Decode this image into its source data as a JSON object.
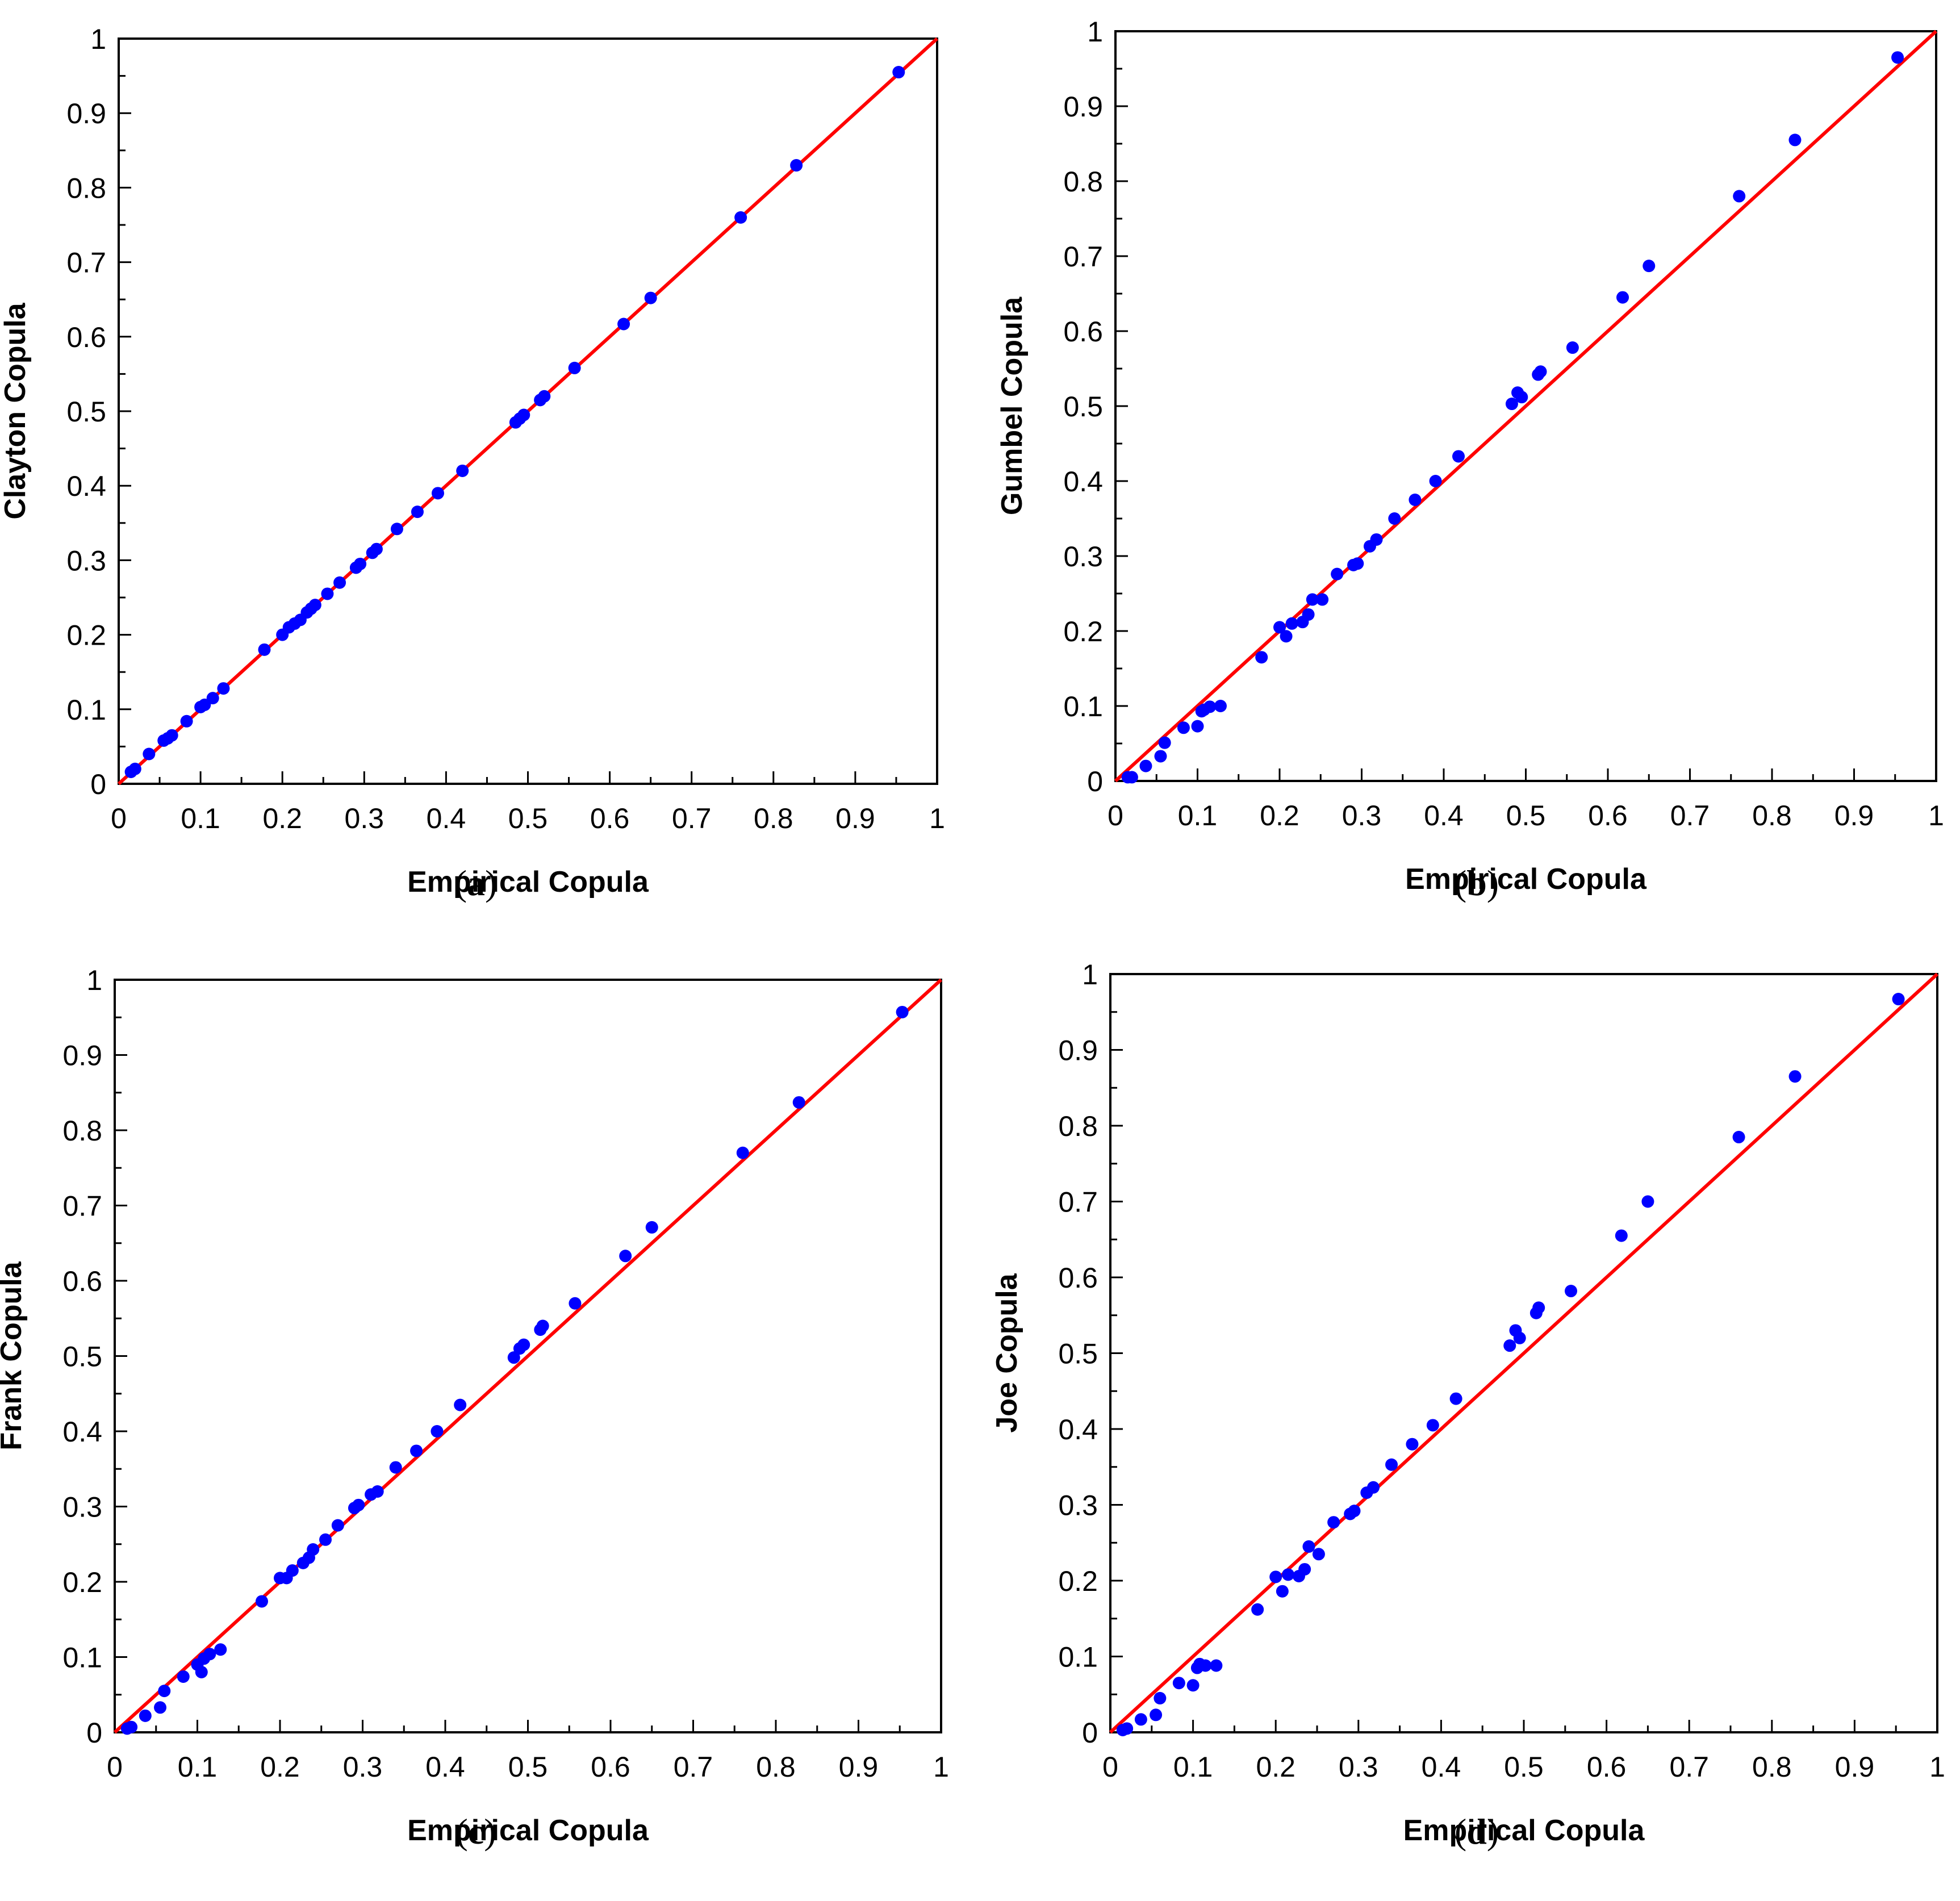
{
  "style": {
    "point_color": "#0000ff",
    "line_color": "#ff0000",
    "axis_color": "#000000"
  },
  "panel_labels": [
    {
      "open": "(",
      "letter": "a",
      "close": ")"
    },
    {
      "open": "(",
      "letter": "b",
      "close": ")"
    },
    {
      "open": "(",
      "letter": "c",
      "close": ")"
    },
    {
      "open": "(",
      "letter": "d",
      "close": ")"
    }
  ],
  "chart_data": [
    {
      "type": "scatter",
      "xlabel": "Empirical Copula",
      "ylabel": "Clayton Copula",
      "xlim": [
        0,
        1
      ],
      "ylim": [
        0,
        1
      ],
      "ticks": [
        "0",
        "0.1",
        "0.2",
        "0.3",
        "0.4",
        "0.5",
        "0.6",
        "0.7",
        "0.8",
        "0.9",
        "1"
      ],
      "reference_line": {
        "from": [
          0,
          0
        ],
        "to": [
          1,
          1
        ]
      },
      "points": [
        [
          0.015,
          0.016
        ],
        [
          0.02,
          0.02
        ],
        [
          0.037,
          0.04
        ],
        [
          0.055,
          0.058
        ],
        [
          0.06,
          0.061
        ],
        [
          0.065,
          0.065
        ],
        [
          0.083,
          0.084
        ],
        [
          0.1,
          0.103
        ],
        [
          0.105,
          0.106
        ],
        [
          0.115,
          0.115
        ],
        [
          0.128,
          0.128
        ],
        [
          0.178,
          0.18
        ],
        [
          0.2,
          0.2
        ],
        [
          0.208,
          0.21
        ],
        [
          0.215,
          0.215
        ],
        [
          0.222,
          0.22
        ],
        [
          0.23,
          0.23
        ],
        [
          0.235,
          0.235
        ],
        [
          0.24,
          0.24
        ],
        [
          0.255,
          0.255
        ],
        [
          0.27,
          0.27
        ],
        [
          0.29,
          0.29
        ],
        [
          0.295,
          0.295
        ],
        [
          0.31,
          0.31
        ],
        [
          0.315,
          0.315
        ],
        [
          0.34,
          0.342
        ],
        [
          0.365,
          0.365
        ],
        [
          0.39,
          0.39
        ],
        [
          0.42,
          0.42
        ],
        [
          0.485,
          0.485
        ],
        [
          0.49,
          0.49
        ],
        [
          0.495,
          0.495
        ],
        [
          0.515,
          0.515
        ],
        [
          0.52,
          0.52
        ],
        [
          0.557,
          0.558
        ],
        [
          0.617,
          0.617
        ],
        [
          0.65,
          0.652
        ],
        [
          0.76,
          0.76
        ],
        [
          0.828,
          0.83
        ],
        [
          0.953,
          0.955
        ]
      ]
    },
    {
      "type": "scatter",
      "xlabel": "Empirical Copula",
      "ylabel": "Gumbel Copula",
      "xlim": [
        0,
        1
      ],
      "ylim": [
        0,
        1
      ],
      "ticks": [
        "0",
        "0.1",
        "0.2",
        "0.3",
        "0.4",
        "0.5",
        "0.6",
        "0.7",
        "0.8",
        "0.9",
        "1"
      ],
      "reference_line": {
        "from": [
          0,
          0
        ],
        "to": [
          1,
          1
        ]
      },
      "points": [
        [
          0.015,
          0.005
        ],
        [
          0.02,
          0.005
        ],
        [
          0.037,
          0.02
        ],
        [
          0.055,
          0.033
        ],
        [
          0.06,
          0.051
        ],
        [
          0.083,
          0.071
        ],
        [
          0.1,
          0.073
        ],
        [
          0.105,
          0.093
        ],
        [
          0.108,
          0.095
        ],
        [
          0.115,
          0.099
        ],
        [
          0.128,
          0.1
        ],
        [
          0.178,
          0.165
        ],
        [
          0.2,
          0.205
        ],
        [
          0.208,
          0.193
        ],
        [
          0.215,
          0.21
        ],
        [
          0.228,
          0.212
        ],
        [
          0.235,
          0.222
        ],
        [
          0.24,
          0.242
        ],
        [
          0.252,
          0.242
        ],
        [
          0.27,
          0.276
        ],
        [
          0.29,
          0.288
        ],
        [
          0.295,
          0.29
        ],
        [
          0.31,
          0.313
        ],
        [
          0.318,
          0.322
        ],
        [
          0.34,
          0.35
        ],
        [
          0.365,
          0.375
        ],
        [
          0.39,
          0.4
        ],
        [
          0.418,
          0.433
        ],
        [
          0.483,
          0.503
        ],
        [
          0.49,
          0.518
        ],
        [
          0.495,
          0.512
        ],
        [
          0.515,
          0.542
        ],
        [
          0.518,
          0.546
        ],
        [
          0.557,
          0.578
        ],
        [
          0.618,
          0.645
        ],
        [
          0.65,
          0.687
        ],
        [
          0.76,
          0.78
        ],
        [
          0.828,
          0.855
        ],
        [
          0.953,
          0.965
        ]
      ]
    },
    {
      "type": "scatter",
      "xlabel": "Empirical Copula",
      "ylabel": "Frank Copula",
      "xlim": [
        0,
        1
      ],
      "ylim": [
        0,
        1
      ],
      "ticks": [
        "0",
        "0.1",
        "0.2",
        "0.3",
        "0.4",
        "0.5",
        "0.6",
        "0.7",
        "0.8",
        "0.9",
        "1"
      ],
      "reference_line": {
        "from": [
          0,
          0
        ],
        "to": [
          1,
          1
        ]
      },
      "points": [
        [
          0.015,
          0.005
        ],
        [
          0.02,
          0.007
        ],
        [
          0.037,
          0.022
        ],
        [
          0.055,
          0.033
        ],
        [
          0.06,
          0.055
        ],
        [
          0.083,
          0.074
        ],
        [
          0.1,
          0.09
        ],
        [
          0.105,
          0.08
        ],
        [
          0.108,
          0.098
        ],
        [
          0.115,
          0.104
        ],
        [
          0.128,
          0.11
        ],
        [
          0.178,
          0.174
        ],
        [
          0.2,
          0.205
        ],
        [
          0.208,
          0.205
        ],
        [
          0.215,
          0.215
        ],
        [
          0.228,
          0.225
        ],
        [
          0.235,
          0.232
        ],
        [
          0.24,
          0.243
        ],
        [
          0.255,
          0.256
        ],
        [
          0.27,
          0.275
        ],
        [
          0.29,
          0.298
        ],
        [
          0.295,
          0.302
        ],
        [
          0.31,
          0.316
        ],
        [
          0.318,
          0.32
        ],
        [
          0.34,
          0.352
        ],
        [
          0.365,
          0.374
        ],
        [
          0.39,
          0.4
        ],
        [
          0.418,
          0.435
        ],
        [
          0.483,
          0.498
        ],
        [
          0.49,
          0.51
        ],
        [
          0.495,
          0.515
        ],
        [
          0.515,
          0.535
        ],
        [
          0.518,
          0.54
        ],
        [
          0.557,
          0.57
        ],
        [
          0.618,
          0.633
        ],
        [
          0.65,
          0.671
        ],
        [
          0.76,
          0.77
        ],
        [
          0.828,
          0.837
        ],
        [
          0.953,
          0.957
        ]
      ]
    },
    {
      "type": "scatter",
      "xlabel": "Empirical Copula",
      "ylabel": "Joe Copula",
      "xlim": [
        0,
        1
      ],
      "ylim": [
        0,
        1
      ],
      "ticks": [
        "0",
        "0.1",
        "0.2",
        "0.3",
        "0.4",
        "0.5",
        "0.6",
        "0.7",
        "0.8",
        "0.9",
        "1"
      ],
      "reference_line": {
        "from": [
          0,
          0
        ],
        "to": [
          1,
          1
        ]
      },
      "points": [
        [
          0.015,
          0.003
        ],
        [
          0.02,
          0.005
        ],
        [
          0.037,
          0.017
        ],
        [
          0.055,
          0.023
        ],
        [
          0.06,
          0.045
        ],
        [
          0.083,
          0.065
        ],
        [
          0.1,
          0.062
        ],
        [
          0.105,
          0.085
        ],
        [
          0.108,
          0.09
        ],
        [
          0.115,
          0.088
        ],
        [
          0.128,
          0.088
        ],
        [
          0.178,
          0.162
        ],
        [
          0.2,
          0.205
        ],
        [
          0.208,
          0.186
        ],
        [
          0.215,
          0.208
        ],
        [
          0.228,
          0.206
        ],
        [
          0.235,
          0.215
        ],
        [
          0.24,
          0.245
        ],
        [
          0.252,
          0.235
        ],
        [
          0.27,
          0.277
        ],
        [
          0.29,
          0.288
        ],
        [
          0.295,
          0.292
        ],
        [
          0.31,
          0.316
        ],
        [
          0.318,
          0.323
        ],
        [
          0.34,
          0.353
        ],
        [
          0.365,
          0.38
        ],
        [
          0.39,
          0.405
        ],
        [
          0.418,
          0.44
        ],
        [
          0.483,
          0.51
        ],
        [
          0.49,
          0.53
        ],
        [
          0.495,
          0.52
        ],
        [
          0.515,
          0.553
        ],
        [
          0.518,
          0.56
        ],
        [
          0.557,
          0.582
        ],
        [
          0.618,
          0.655
        ],
        [
          0.65,
          0.7
        ],
        [
          0.76,
          0.785
        ],
        [
          0.828,
          0.865
        ],
        [
          0.953,
          0.967
        ]
      ]
    }
  ]
}
